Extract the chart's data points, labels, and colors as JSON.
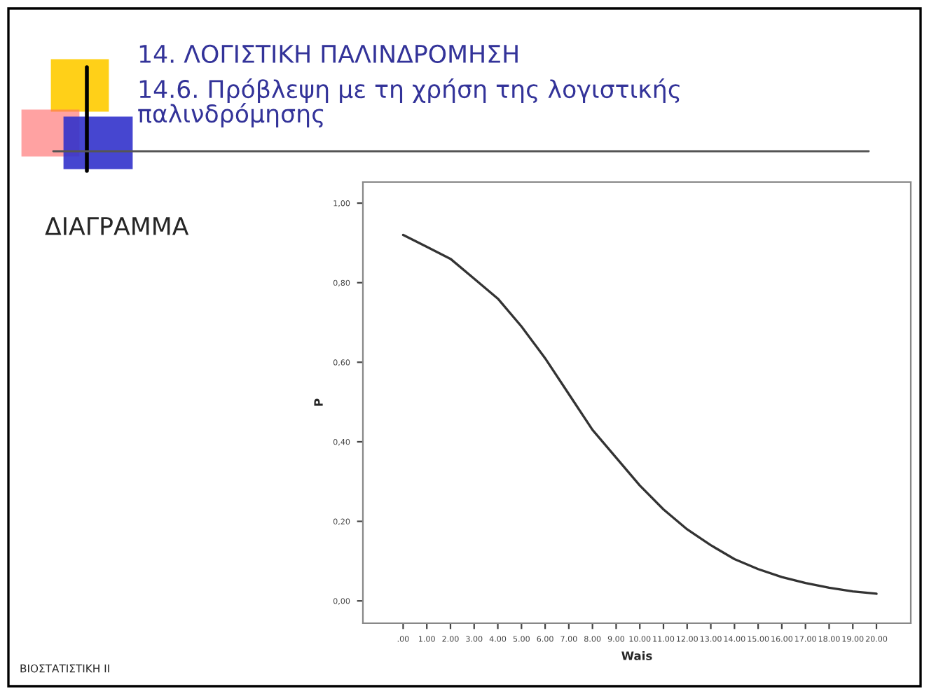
{
  "chart_data": {
    "type": "line",
    "title": "14. ΛΟΓΙΣΤΙΚΗ ΠΑΛΙΝΔΡΟΜΗΣΗ",
    "subtitle": "14.6. Πρόβλεψη με τη χρήση της λογιστικής παλινδρόμησης",
    "xlabel": "Wais",
    "ylabel": "P",
    "annotations": [
      "ΔΙΑΓΡΑΜΜΑ",
      "ΒΙΟΣΤΑΤΙΣΤΙΚΗ ΙΙ"
    ],
    "x": [
      0,
      1,
      2,
      3,
      4,
      5,
      6,
      7,
      8,
      9,
      10,
      11,
      12,
      13,
      14,
      15,
      16,
      17,
      18,
      19,
      20
    ],
    "series": [
      {
        "color": "#333333",
        "values": [
          0.92,
          0.89,
          0.86,
          0.81,
          0.76,
          0.69,
          0.61,
          0.52,
          0.43,
          0.36,
          0.29,
          0.23,
          0.18,
          0.14,
          0.105,
          0.08,
          0.06,
          0.045,
          0.033,
          0.024,
          0.018
        ]
      }
    ],
    "xlim": [
      -1.7,
      21.45
    ],
    "ylim": [
      -0.056,
      1.053
    ],
    "xticks": [
      {
        "value": 0,
        "label": ".00"
      },
      {
        "value": 1,
        "label": "1.00"
      },
      {
        "value": 2,
        "label": "2.00"
      },
      {
        "value": 3,
        "label": "3.00"
      },
      {
        "value": 4,
        "label": "4.00"
      },
      {
        "value": 5,
        "label": "5.00"
      },
      {
        "value": 6,
        "label": "6.00"
      },
      {
        "value": 7,
        "label": "7.00"
      },
      {
        "value": 8,
        "label": "8.00"
      },
      {
        "value": 9,
        "label": "9.00"
      },
      {
        "value": 10,
        "label": "10.00"
      },
      {
        "value": 11,
        "label": "11.00"
      },
      {
        "value": 12,
        "label": "12.00"
      },
      {
        "value": 13,
        "label": "13.00"
      },
      {
        "value": 14,
        "label": "14.00"
      },
      {
        "value": 15,
        "label": "15.00"
      },
      {
        "value": 16,
        "label": "16.00"
      },
      {
        "value": 17,
        "label": "17.00"
      },
      {
        "value": 18,
        "label": "18.00"
      },
      {
        "value": 19,
        "label": "19.00"
      },
      {
        "value": 20,
        "label": "20.00"
      }
    ],
    "yticks": [
      {
        "value": 0,
        "label": "0,00"
      },
      {
        "value": 0.2,
        "label": "0,20"
      },
      {
        "value": 0.4,
        "label": "0,40"
      },
      {
        "value": 0.6,
        "label": "0,60"
      },
      {
        "value": 0.8,
        "label": "0,80"
      },
      {
        "value": 1,
        "label": "1,00"
      }
    ],
    "grid": false,
    "marker": "none",
    "line_style": "solid"
  }
}
